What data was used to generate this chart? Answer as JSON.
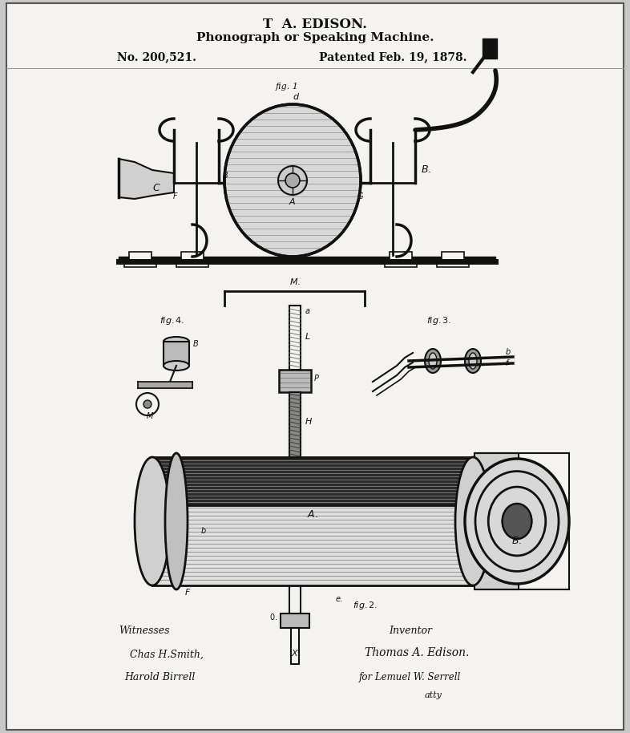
{
  "title_line1": "T  A. EDISON.",
  "title_line2": "Phonograph or Speaking Machine.",
  "title_line3_left": "No. 200,521.",
  "title_line3_right": "Patented Feb. 19, 1878.",
  "bg_color": "#c8c8c8",
  "paper_color": "#f4f3f0",
  "ink_color": "#111111",
  "witnesses_text": "Witnesses",
  "witness1": "Chas H.Smith,",
  "witness2": "Harold Birrell",
  "inventor_label": "Inventor",
  "inventor_name": "Thomas A. Edison.",
  "attorney_text": "for Lemuel W. Serrell",
  "attorney_suffix": "atty"
}
